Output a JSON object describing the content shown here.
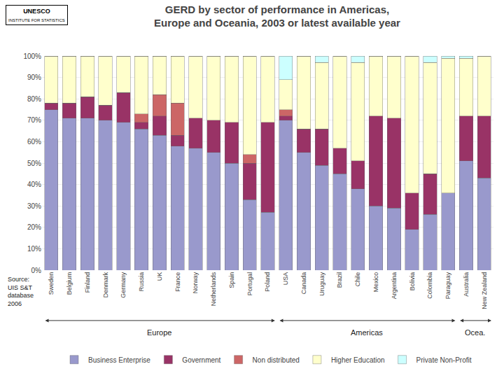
{
  "chart_data": {
    "type": "bar",
    "stacked": true,
    "title": "GERD by sector of performance in Americas,\nEurope and Oceania, 2003 or latest available year",
    "categories": [
      "Sweden",
      "Belgium",
      "Finland",
      "Denmark",
      "Germany",
      "Russia",
      "UK",
      "France",
      "Norway",
      "Netherlands",
      "Spain",
      "Portugal",
      "Poland",
      "USA",
      "Canada",
      "Uruguay",
      "Brazil",
      "Chile",
      "Mexico",
      "Argentina",
      "Bolivia",
      "Colombia",
      "Paraguay",
      "Australia",
      "New Zealand"
    ],
    "series": [
      {
        "name": "Business Enterprise",
        "color": "#9999CC",
        "values": [
          75,
          71,
          71,
          70,
          69,
          66,
          63,
          58,
          57,
          55,
          50,
          33,
          27,
          70,
          55,
          49,
          45,
          38,
          30,
          29,
          19,
          26,
          36,
          51,
          43
        ]
      },
      {
        "name": "Government",
        "color": "#993366",
        "values": [
          3,
          7,
          10,
          7,
          14,
          3,
          9,
          5,
          14,
          15,
          19,
          17,
          42,
          2,
          11,
          17,
          12,
          13,
          42,
          42,
          17,
          19,
          0,
          21,
          29
        ]
      },
      {
        "name": "Non distributed",
        "color": "#CC6666",
        "values": [
          0,
          0,
          0,
          0,
          0,
          4,
          10,
          15,
          0,
          0,
          0,
          4,
          0,
          3,
          0,
          0,
          0,
          0,
          0,
          0,
          0,
          0,
          0,
          0,
          0
        ]
      },
      {
        "name": "Higher Education",
        "color": "#FFFFCC",
        "values": [
          22,
          22,
          19,
          23,
          17,
          27,
          18,
          22,
          29,
          30,
          31,
          46,
          31,
          14,
          34,
          31,
          43,
          46,
          28,
          29,
          64,
          52,
          63,
          27,
          28
        ]
      },
      {
        "name": "Private Non-Profit",
        "color": "#CCFFFF",
        "values": [
          0,
          0,
          0,
          0,
          0,
          0,
          0,
          0,
          0,
          0,
          0,
          0,
          0,
          11,
          0,
          3,
          0,
          3,
          0,
          0,
          0,
          3,
          1,
          1,
          0
        ]
      }
    ],
    "ylim": [
      0,
      100
    ],
    "yticks": [
      {
        "value": 0,
        "label": "0%"
      },
      {
        "value": 10,
        "label": "10%"
      },
      {
        "value": 20,
        "label": "20%"
      },
      {
        "value": 30,
        "label": "30%"
      },
      {
        "value": 40,
        "label": "40%"
      },
      {
        "value": 50,
        "label": "50%"
      },
      {
        "value": 60,
        "label": "60%"
      },
      {
        "value": 70,
        "label": "70%"
      },
      {
        "value": 80,
        "label": "80%"
      },
      {
        "value": 90,
        "label": "90%"
      },
      {
        "value": 100,
        "label": "100%"
      }
    ],
    "grid": true,
    "legend": "bottom",
    "annotations": [
      {
        "text": "Europe",
        "categories": [
          "Sweden",
          "Poland"
        ]
      },
      {
        "text": "Americas",
        "categories": [
          "USA",
          "Paraguay"
        ]
      },
      {
        "text": "Ocea.",
        "categories": [
          "Australia",
          "New Zealand"
        ]
      }
    ],
    "source": "Source:\nUIS S&T\ndatabase\n2006",
    "logo": [
      "UNESCO",
      "INSTITUTE FOR STATISTICS"
    ]
  }
}
